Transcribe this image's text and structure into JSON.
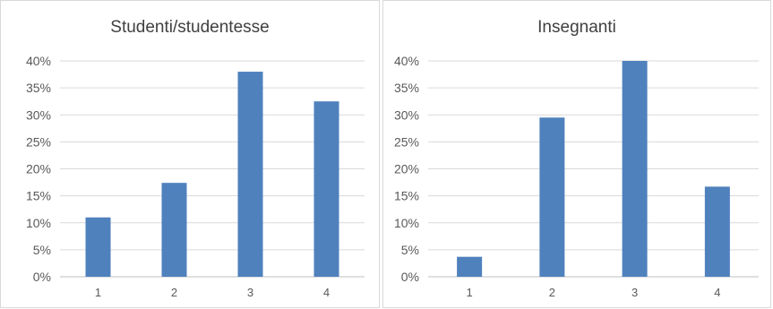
{
  "chart_data": [
    {
      "type": "bar",
      "title": "Studenti/studentesse",
      "categories": [
        "1",
        "2",
        "3",
        "4"
      ],
      "values": [
        11,
        17.4,
        38,
        32.5
      ],
      "ylim": [
        0,
        40
      ],
      "yticks": [
        "0%",
        "5%",
        "10%",
        "15%",
        "20%",
        "25%",
        "30%",
        "35%",
        "40%"
      ],
      "grid": true,
      "color": "#4f81bd"
    },
    {
      "type": "bar",
      "title": "Insegnanti",
      "categories": [
        "1",
        "2",
        "3",
        "4"
      ],
      "values": [
        3.7,
        29.5,
        40,
        16.7
      ],
      "ylim": [
        0,
        40
      ],
      "yticks": [
        "0%",
        "5%",
        "10%",
        "15%",
        "20%",
        "25%",
        "30%",
        "35%",
        "40%"
      ],
      "grid": true,
      "color": "#4f81bd"
    }
  ]
}
